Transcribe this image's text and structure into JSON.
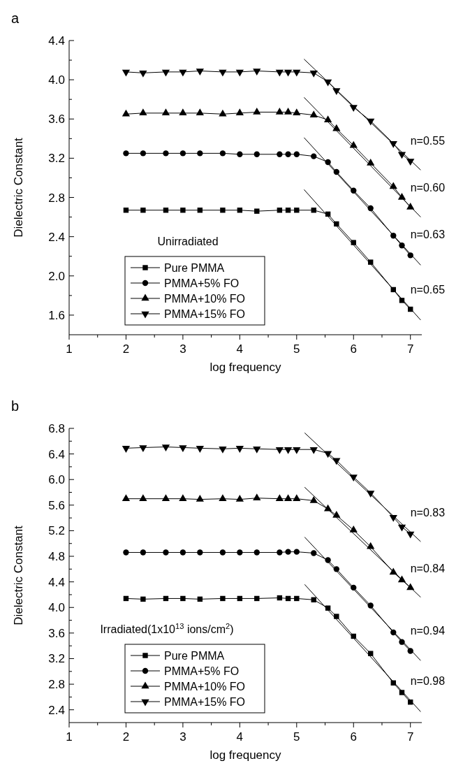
{
  "chart_data": [
    {
      "type": "line",
      "title": "a",
      "xlabel": "log frequency",
      "ylabel": "Dielectric Constant",
      "xlim": [
        1,
        7.2
      ],
      "ylim": [
        1.4,
        4.4
      ],
      "xticks": [
        1,
        {
          "value": 1.5,
          "label": null
        },
        2,
        {
          "value": 2.5,
          "label": null
        },
        3,
        {
          "value": 3.5,
          "label": null
        },
        4,
        {
          "value": 4.5,
          "label": null
        },
        5,
        {
          "value": 5.5,
          "label": null
        },
        6,
        {
          "value": 6.5,
          "label": null
        },
        7
      ],
      "yticks": [
        {
          "value": 1.6,
          "label": "1.6"
        },
        {
          "value": 1.8,
          "label": null
        },
        {
          "value": 2,
          "label": "2.0"
        },
        {
          "value": 2.2,
          "label": null
        },
        {
          "value": 2.4,
          "label": "2.4"
        },
        {
          "value": 2.6,
          "label": null
        },
        {
          "value": 2.8,
          "label": "2.8"
        },
        {
          "value": 3,
          "label": null
        },
        {
          "value": 3.2,
          "label": "3.2"
        },
        {
          "value": 3.4,
          "label": null
        },
        {
          "value": 3.6,
          "label": "3.6"
        },
        {
          "value": 3.8,
          "label": null
        },
        {
          "value": 4,
          "label": "4.0"
        },
        {
          "value": 4.2,
          "label": null
        },
        {
          "value": 4.4,
          "label": "4.4"
        }
      ],
      "x": [
        2,
        2.3,
        2.7,
        3,
        3.3,
        3.7,
        4,
        4.3,
        4.7,
        4.85,
        5,
        5.3,
        5.55,
        5.7,
        6,
        6.3,
        6.7,
        6.85,
        7
      ],
      "legend": "bottom left",
      "grid": false,
      "series": [
        {
          "name": "Pure PMMA",
          "color": "#000000",
          "marker": "square",
          "values": [
            2.67,
            2.67,
            2.67,
            2.67,
            2.67,
            2.67,
            2.67,
            2.66,
            2.67,
            2.67,
            2.67,
            2.67,
            2.63,
            2.53,
            2.34,
            2.14,
            1.86,
            1.75,
            1.66
          ]
        },
        {
          "name": "PMMA+5% FO",
          "color": "#000000",
          "marker": "circle",
          "values": [
            3.25,
            3.25,
            3.25,
            3.25,
            3.25,
            3.25,
            3.24,
            3.24,
            3.24,
            3.24,
            3.24,
            3.22,
            3.16,
            3.06,
            2.87,
            2.69,
            2.41,
            2.31,
            2.21
          ]
        },
        {
          "name": "PMMA+10% FO",
          "color": "#000000",
          "marker": "triangle",
          "values": [
            3.65,
            3.66,
            3.66,
            3.66,
            3.66,
            3.65,
            3.66,
            3.67,
            3.67,
            3.67,
            3.66,
            3.64,
            3.59,
            3.5,
            3.33,
            3.15,
            2.91,
            2.8,
            2.7
          ]
        },
        {
          "name": "PMMA+15% FO",
          "color": "#000000",
          "marker": "triangle-down",
          "values": [
            4.08,
            4.07,
            4.08,
            4.08,
            4.09,
            4.08,
            4.08,
            4.09,
            4.08,
            4.08,
            4.08,
            4.07,
            3.98,
            3.89,
            3.72,
            3.58,
            3.35,
            3.24,
            3.17
          ]
        },
        {
          "type": "line",
          "color": "#000000",
          "marker": "none",
          "x": [
            5.13,
            7.18
          ],
          "values": [
            4.21,
            3.08
          ]
        },
        {
          "type": "line",
          "color": "#000000",
          "marker": "none",
          "x": [
            5.13,
            7.18
          ],
          "values": [
            3.82,
            2.6
          ]
        },
        {
          "type": "line",
          "color": "#000000",
          "marker": "none",
          "x": [
            5.13,
            7.18
          ],
          "values": [
            3.41,
            2.11
          ]
        },
        {
          "type": "line",
          "color": "#000000",
          "marker": "none",
          "x": [
            5.13,
            7.18
          ],
          "values": [
            2.88,
            1.55
          ]
        }
      ],
      "annotations": [
        "Unirradiated",
        "n=0.55",
        "n=0.60",
        "n=0.63",
        "n=0.65"
      ]
    },
    {
      "type": "line",
      "title": "b",
      "xlabel": "log frequency",
      "ylabel": "Dielectric Constant",
      "xlim": [
        1,
        7.2
      ],
      "ylim": [
        2.2,
        6.8
      ],
      "xticks": [
        1,
        {
          "value": 1.5,
          "label": null
        },
        2,
        {
          "value": 2.5,
          "label": null
        },
        3,
        {
          "value": 3.5,
          "label": null
        },
        4,
        {
          "value": 4.5,
          "label": null
        },
        5,
        {
          "value": 5.5,
          "label": null
        },
        6,
        {
          "value": 6.5,
          "label": null
        },
        7
      ],
      "yticks": [
        {
          "value": 2.4,
          "label": "2.4"
        },
        {
          "value": 2.6,
          "label": null
        },
        {
          "value": 2.8,
          "label": "2.8"
        },
        {
          "value": 3,
          "label": null
        },
        {
          "value": 3.2,
          "label": "3.2"
        },
        {
          "value": 3.4,
          "label": null
        },
        {
          "value": 3.6,
          "label": "3.6"
        },
        {
          "value": 3.8,
          "label": null
        },
        {
          "value": 4,
          "label": "4.0"
        },
        {
          "value": 4.2,
          "label": null
        },
        {
          "value": 4.4,
          "label": "4.4"
        },
        {
          "value": 4.6,
          "label": null
        },
        {
          "value": 4.8,
          "label": "4.8"
        },
        {
          "value": 5,
          "label": null
        },
        {
          "value": 5.2,
          "label": "5.2"
        },
        {
          "value": 5.4,
          "label": null
        },
        {
          "value": 5.6,
          "label": "5.6"
        },
        {
          "value": 5.8,
          "label": null
        },
        {
          "value": 6,
          "label": "6.0"
        },
        {
          "value": 6.2,
          "label": null
        },
        {
          "value": 6.4,
          "label": "6.4"
        },
        {
          "value": 6.6,
          "label": null
        },
        {
          "value": 6.8,
          "label": "6.8"
        }
      ],
      "x": [
        2,
        2.3,
        2.7,
        3,
        3.3,
        3.7,
        4,
        4.3,
        4.7,
        4.85,
        5,
        5.3,
        5.55,
        5.7,
        6,
        6.3,
        6.7,
        6.85,
        7
      ],
      "legend": "bottom left",
      "grid": false,
      "series": [
        {
          "name": "Pure PMMA",
          "color": "#000000",
          "marker": "square",
          "values": [
            4.14,
            4.13,
            4.14,
            4.14,
            4.13,
            4.14,
            4.14,
            4.14,
            4.15,
            4.14,
            4.14,
            4.12,
            3.99,
            3.86,
            3.55,
            3.28,
            2.82,
            2.67,
            2.52
          ]
        },
        {
          "name": "PMMA+5% FO",
          "color": "#000000",
          "marker": "circle",
          "values": [
            4.86,
            4.86,
            4.86,
            4.86,
            4.86,
            4.86,
            4.86,
            4.86,
            4.86,
            4.87,
            4.87,
            4.85,
            4.74,
            4.6,
            4.31,
            4.03,
            3.61,
            3.46,
            3.32
          ]
        },
        {
          "name": "PMMA+10% FO",
          "color": "#000000",
          "marker": "triangle",
          "values": [
            5.7,
            5.7,
            5.7,
            5.7,
            5.69,
            5.7,
            5.69,
            5.71,
            5.7,
            5.7,
            5.7,
            5.67,
            5.54,
            5.44,
            5.21,
            4.95,
            4.55,
            4.43,
            4.31
          ]
        },
        {
          "name": "PMMA+15% FO",
          "color": "#000000",
          "marker": "triangle-down",
          "values": [
            6.49,
            6.5,
            6.51,
            6.5,
            6.49,
            6.48,
            6.49,
            6.48,
            6.47,
            6.47,
            6.47,
            6.47,
            6.41,
            6.3,
            6.04,
            5.79,
            5.41,
            5.26,
            5.15
          ]
        },
        {
          "type": "line",
          "color": "#000000",
          "marker": "none",
          "x": [
            5.14,
            7.18
          ],
          "values": [
            6.73,
            5.03
          ]
        },
        {
          "type": "line",
          "color": "#000000",
          "marker": "none",
          "x": [
            5.14,
            7.18
          ],
          "values": [
            5.88,
            4.16
          ]
        },
        {
          "type": "line",
          "color": "#000000",
          "marker": "none",
          "x": [
            5.14,
            7.18
          ],
          "values": [
            5.1,
            3.17
          ]
        },
        {
          "type": "line",
          "color": "#000000",
          "marker": "none",
          "x": [
            5.14,
            7.18
          ],
          "values": [
            4.36,
            2.37
          ]
        }
      ],
      "annotations": [
        "Irradiated(1x10$^{13}$ ions/cm$^{2}$)",
        "n=0.83",
        "n=0.84",
        "n=0.94",
        "n=0.98"
      ]
    }
  ]
}
